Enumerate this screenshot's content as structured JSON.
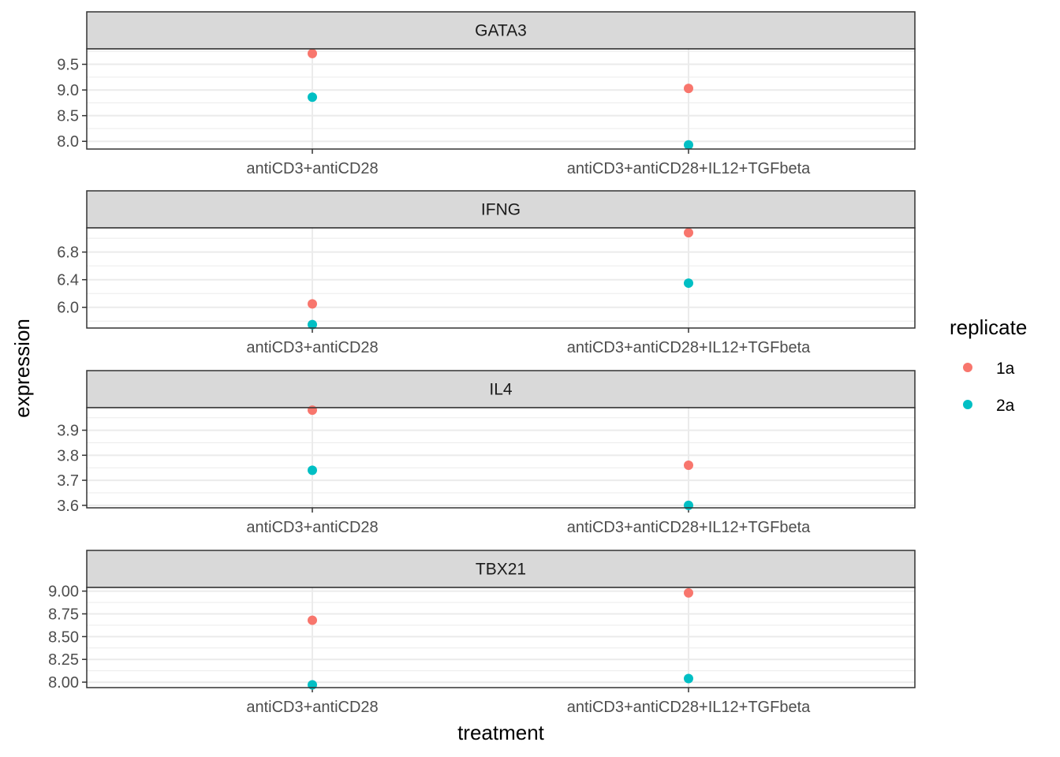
{
  "chart_data": {
    "type": "scatter",
    "xlabel": "treatment",
    "ylabel": "expression",
    "categories": [
      "antiCD3+antiCD28",
      "antiCD3+antiCD28+IL12+TGFbeta"
    ],
    "legend": {
      "title": "replicate",
      "placement": "right",
      "entries": [
        {
          "name": "1a",
          "color": "#F8766D"
        },
        {
          "name": "2a",
          "color": "#00BFC4"
        }
      ]
    },
    "grid": true,
    "facets": [
      {
        "title": "GATA3",
        "ylim": [
          7.85,
          9.8
        ],
        "ticks": [
          "8.0",
          "8.5",
          "9.0",
          "9.5"
        ],
        "series": [
          {
            "name": "1a",
            "values": [
              9.71,
              9.03
            ]
          },
          {
            "name": "2a",
            "values": [
              8.86,
              7.93
            ]
          }
        ]
      },
      {
        "title": "IFNG",
        "ylim": [
          5.7,
          7.15
        ],
        "ticks": [
          "6.0",
          "6.4",
          "6.8"
        ],
        "series": [
          {
            "name": "1a",
            "values": [
              6.05,
              7.08
            ]
          },
          {
            "name": "2a",
            "values": [
              5.75,
              6.35
            ]
          }
        ]
      },
      {
        "title": "IL4",
        "ylim": [
          3.59,
          3.99
        ],
        "ticks": [
          "3.6",
          "3.7",
          "3.8",
          "3.9"
        ],
        "series": [
          {
            "name": "1a",
            "values": [
              3.98,
              3.76
            ]
          },
          {
            "name": "2a",
            "values": [
              3.74,
              3.6
            ]
          }
        ]
      },
      {
        "title": "TBX21",
        "ylim": [
          7.94,
          9.04
        ],
        "ticks": [
          "8.00",
          "8.25",
          "8.50",
          "8.75",
          "9.00"
        ],
        "series": [
          {
            "name": "1a",
            "values": [
              8.68,
              8.98
            ]
          },
          {
            "name": "2a",
            "values": [
              7.97,
              8.04
            ]
          }
        ]
      }
    ]
  }
}
